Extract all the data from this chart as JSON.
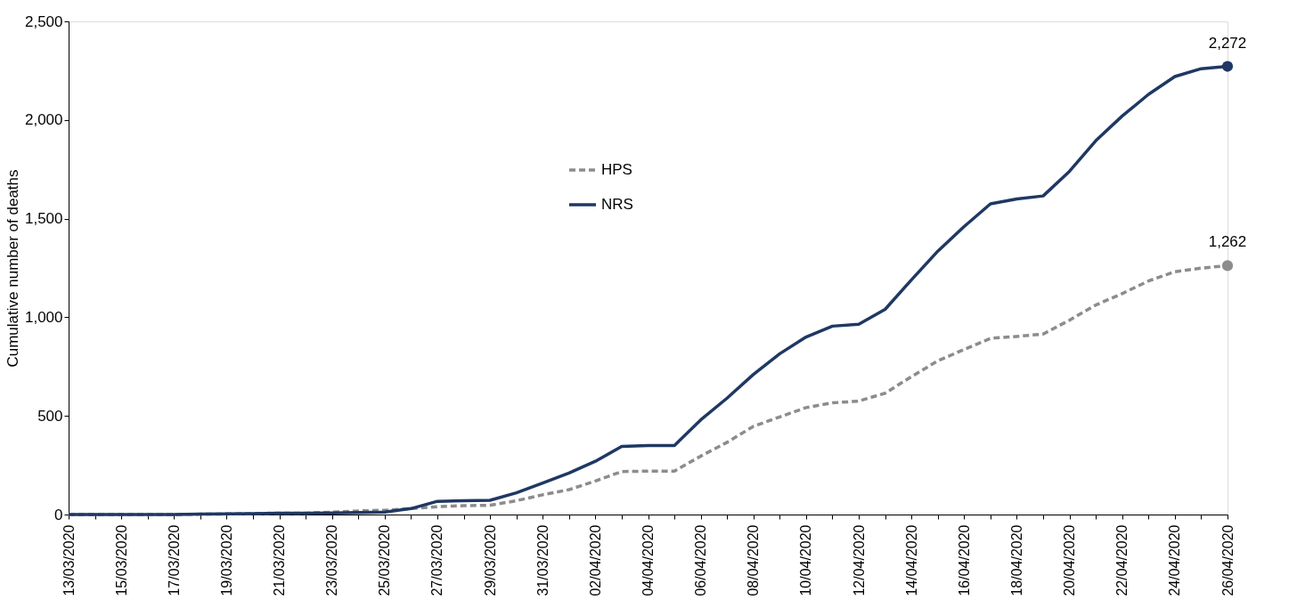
{
  "chart_data": {
    "type": "line",
    "ylabel": "Cumulative  number  of deaths",
    "categories": [
      "13/03/2020",
      null,
      "15/03/2020",
      null,
      "17/03/2020",
      null,
      "19/03/2020",
      null,
      "21/03/2020",
      null,
      "23/03/2020",
      null,
      "25/03/2020",
      null,
      "27/03/2020",
      null,
      "29/03/2020",
      null,
      "31/03/2020",
      null,
      "02/04/2020",
      null,
      "04/04/2020",
      null,
      "06/04/2020",
      null,
      "08/04/2020",
      null,
      "10/04/2020",
      null,
      "12/04/2020",
      null,
      "14/04/2020",
      null,
      "16/04/2020",
      null,
      "18/04/2020",
      null,
      "20/04/2020",
      null,
      "22/04/2020",
      null,
      "24/04/2020",
      null,
      "26/04/2020"
    ],
    "series": [
      {
        "name": "HPS",
        "color": "#8c8c8c",
        "line_style": "dashed",
        "values": [
          0,
          0,
          0,
          0,
          0,
          2,
          3,
          5,
          7,
          7,
          12,
          18,
          22,
          30,
          40,
          45,
          47,
          70,
          100,
          126,
          170,
          218,
          220,
          220,
          296,
          366,
          447,
          495,
          542,
          566,
          575,
          615,
          699,
          779,
          837,
          893,
          903,
          915,
          985,
          1062,
          1120,
          1184,
          1231,
          1249,
          1262
        ],
        "value_labels": [
          null,
          null,
          null,
          null,
          null,
          null,
          null,
          null,
          null,
          null,
          null,
          null,
          null,
          null,
          null,
          null,
          null,
          null,
          null,
          null,
          null,
          null,
          null,
          null,
          null,
          null,
          null,
          null,
          null,
          null,
          null,
          null,
          null,
          null,
          null,
          null,
          null,
          null,
          null,
          null,
          null,
          null,
          null,
          null,
          "1,262"
        ]
      },
      {
        "name": "NRS",
        "color": "#1f3864",
        "line_style": "solid",
        "values": [
          0,
          0,
          0,
          0,
          0,
          2,
          3,
          5,
          7,
          7,
          8,
          10,
          12,
          30,
          67,
          70,
          72,
          110,
          160,
          210,
          270,
          345,
          350,
          350,
          480,
          590,
          710,
          815,
          900,
          955,
          965,
          1040,
          1190,
          1335,
          1460,
          1575,
          1600,
          1615,
          1740,
          1895,
          2020,
          2130,
          2220,
          2260,
          2272
        ],
        "value_labels": [
          null,
          null,
          null,
          null,
          null,
          null,
          null,
          null,
          null,
          null,
          null,
          null,
          null,
          null,
          null,
          null,
          null,
          null,
          null,
          null,
          null,
          null,
          null,
          null,
          null,
          null,
          null,
          null,
          null,
          null,
          null,
          null,
          null,
          null,
          null,
          null,
          null,
          null,
          null,
          null,
          null,
          null,
          null,
          null,
          "2,272"
        ]
      }
    ],
    "ylim": [
      0,
      2500
    ],
    "yticks": [
      0,
      {
        "value": 500,
        "label": "500"
      },
      {
        "value": 1000,
        "label": "1,000"
      },
      {
        "value": 1500,
        "label": "1,500"
      },
      {
        "value": 2000,
        "label": "2,000"
      },
      {
        "value": 2500,
        "label": "2,500"
      }
    ],
    "grid": false,
    "legend": "top",
    "marker": "none"
  }
}
